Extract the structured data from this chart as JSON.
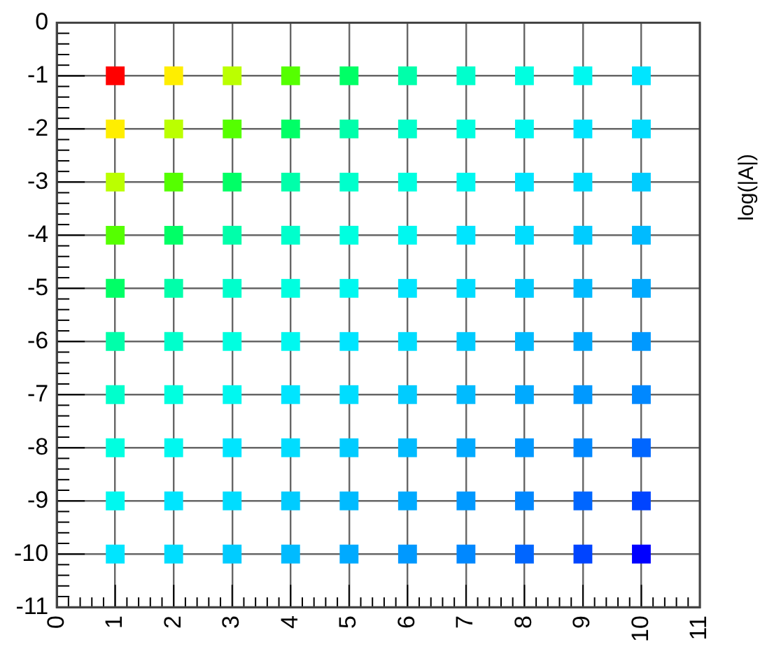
{
  "chart_data": {
    "type": "scatter",
    "clabel": "log(|A|)",
    "marker": "square",
    "grid": true,
    "x": [
      1,
      2,
      3,
      4,
      5,
      6,
      7,
      8,
      9,
      10,
      1,
      2,
      3,
      4,
      5,
      6,
      7,
      8,
      9,
      10,
      1,
      2,
      3,
      4,
      5,
      6,
      7,
      8,
      9,
      10,
      1,
      2,
      3,
      4,
      5,
      6,
      7,
      8,
      9,
      10,
      1,
      2,
      3,
      4,
      5,
      6,
      7,
      8,
      9,
      10,
      1,
      2,
      3,
      4,
      5,
      6,
      7,
      8,
      9,
      10,
      1,
      2,
      3,
      4,
      5,
      6,
      7,
      8,
      9,
      10,
      1,
      2,
      3,
      4,
      5,
      6,
      7,
      8,
      9,
      10,
      1,
      2,
      3,
      4,
      5,
      6,
      7,
      8,
      9,
      10,
      1,
      2,
      3,
      4,
      5,
      6,
      7,
      8,
      9,
      10
    ],
    "values": [
      -1,
      -1,
      -1,
      -1,
      -1,
      -1,
      -1,
      -1,
      -1,
      -1,
      -2,
      -2,
      -2,
      -2,
      -2,
      -2,
      -2,
      -2,
      -2,
      -2,
      -3,
      -3,
      -3,
      -3,
      -3,
      -3,
      -3,
      -3,
      -3,
      -3,
      -4,
      -4,
      -4,
      -4,
      -4,
      -4,
      -4,
      -4,
      -4,
      -4,
      -5,
      -5,
      -5,
      -5,
      -5,
      -5,
      -5,
      -5,
      -5,
      -5,
      -6,
      -6,
      -6,
      -6,
      -6,
      -6,
      -6,
      -6,
      -6,
      -6,
      -7,
      -7,
      -7,
      -7,
      -7,
      -7,
      -7,
      -7,
      -7,
      -7,
      -8,
      -8,
      -8,
      -8,
      -8,
      -8,
      -8,
      -8,
      -8,
      -8,
      -9,
      -9,
      -9,
      -9,
      -9,
      -9,
      -9,
      -9,
      -9,
      -9,
      -10,
      -10,
      -10,
      -10,
      -10,
      -10,
      -10,
      -10,
      -10,
      -10
    ],
    "colors": [
      "#ff0000",
      "#ffee00",
      "#bbff00",
      "#55ff00",
      "#00ff66",
      "#00ffaa",
      "#00ffcc",
      "#00ffe0",
      "#00f8f0",
      "#00e5ff",
      "#ffee00",
      "#bbff00",
      "#55ff00",
      "#00ff66",
      "#00ffaa",
      "#00ffcc",
      "#00ffe0",
      "#00f8f0",
      "#00e5ff",
      "#00ddff",
      "#bbff00",
      "#55ff00",
      "#00ff66",
      "#00ffaa",
      "#00ffcc",
      "#00ffe0",
      "#00f8f0",
      "#00e5ff",
      "#00ddff",
      "#00ccff",
      "#55ff00",
      "#00ff66",
      "#00ffaa",
      "#00ffcc",
      "#00ffe0",
      "#00f8f0",
      "#00e5ff",
      "#00ddff",
      "#00ccff",
      "#00bbff",
      "#00ff66",
      "#00ffaa",
      "#00ffcc",
      "#00ffe0",
      "#00f8f0",
      "#00e5ff",
      "#00ddff",
      "#00ccff",
      "#00bbff",
      "#00aaff",
      "#00ffaa",
      "#00ffcc",
      "#00ffe0",
      "#00f8f0",
      "#00e5ff",
      "#00ddff",
      "#00ccff",
      "#00bbff",
      "#00aaff",
      "#0099ff",
      "#00ffcc",
      "#00ffe0",
      "#00f8f0",
      "#00e5ff",
      "#00ddff",
      "#00ccff",
      "#00bbff",
      "#00aaff",
      "#0099ff",
      "#0088ff",
      "#00ffe0",
      "#00f8f0",
      "#00e5ff",
      "#00ddff",
      "#00ccff",
      "#00bbff",
      "#00aaff",
      "#0099ff",
      "#0088ff",
      "#0066ff",
      "#00f8f0",
      "#00e5ff",
      "#00ddff",
      "#00ccff",
      "#00bbff",
      "#00aaff",
      "#0099ff",
      "#0088ff",
      "#0066ff",
      "#0044ff",
      "#00e5ff",
      "#00ddff",
      "#00ccff",
      "#00bbff",
      "#00aaff",
      "#0099ff",
      "#0088ff",
      "#0066ff",
      "#0044ff",
      "#0000ff"
    ],
    "xlim": [
      0,
      11
    ],
    "ylim": [
      -11,
      0
    ],
    "xticks": [
      0,
      {
        "value": 0.2,
        "label": null
      },
      {
        "value": 0.4,
        "label": null
      },
      {
        "value": 0.6,
        "label": null
      },
      {
        "value": 0.8,
        "label": null
      },
      1,
      {
        "value": 1.2,
        "label": null
      },
      {
        "value": 1.4,
        "label": null
      },
      {
        "value": 1.6,
        "label": null
      },
      {
        "value": 1.8,
        "label": null
      },
      2,
      {
        "value": 2.2,
        "label": null
      },
      {
        "value": 2.4,
        "label": null
      },
      {
        "value": 2.6,
        "label": null
      },
      {
        "value": 2.8,
        "label": null
      },
      3,
      {
        "value": 3.2,
        "label": null
      },
      {
        "value": 3.4,
        "label": null
      },
      {
        "value": 3.6,
        "label": null
      },
      {
        "value": 3.8,
        "label": null
      },
      4,
      {
        "value": 4.2,
        "label": null
      },
      {
        "value": 4.4,
        "label": null
      },
      {
        "value": 4.6,
        "label": null
      },
      {
        "value": 4.8,
        "label": null
      },
      5,
      {
        "value": 5.2,
        "label": null
      },
      {
        "value": 5.4,
        "label": null
      },
      {
        "value": 5.6,
        "label": null
      },
      {
        "value": 5.8,
        "label": null
      },
      6,
      {
        "value": 6.2,
        "label": null
      },
      {
        "value": 6.4,
        "label": null
      },
      {
        "value": 6.6,
        "label": null
      },
      {
        "value": 6.8,
        "label": null
      },
      7,
      {
        "value": 7.2,
        "label": null
      },
      {
        "value": 7.4,
        "label": null
      },
      {
        "value": 7.6,
        "label": null
      },
      {
        "value": 7.8,
        "label": null
      },
      8,
      {
        "value": 8.2,
        "label": null
      },
      {
        "value": 8.4,
        "label": null
      },
      {
        "value": 8.6,
        "label": null
      },
      {
        "value": 8.8,
        "label": null
      },
      9,
      {
        "value": 9.2,
        "label": null
      },
      {
        "value": 9.4,
        "label": null
      },
      {
        "value": 9.6,
        "label": null
      },
      {
        "value": 9.8,
        "label": null
      },
      10,
      {
        "value": 10.2,
        "label": null
      },
      {
        "value": 10.4,
        "label": null
      },
      {
        "value": 10.6,
        "label": null
      },
      {
        "value": 10.8,
        "label": null
      },
      11
    ],
    "yticks": [
      -11,
      {
        "value": -10.8,
        "label": null
      },
      {
        "value": -10.6,
        "label": null
      },
      {
        "value": -10.4,
        "label": null
      },
      {
        "value": -10.2,
        "label": null
      },
      -10,
      {
        "value": -9.8,
        "label": null
      },
      {
        "value": -9.6,
        "label": null
      },
      {
        "value": -9.4,
        "label": null
      },
      {
        "value": -9.2,
        "label": null
      },
      -9,
      {
        "value": -8.8,
        "label": null
      },
      {
        "value": -8.6,
        "label": null
      },
      {
        "value": -8.4,
        "label": null
      },
      {
        "value": -8.2,
        "label": null
      },
      -8,
      {
        "value": -7.8,
        "label": null
      },
      {
        "value": -7.6,
        "label": null
      },
      {
        "value": -7.4,
        "label": null
      },
      {
        "value": -7.2,
        "label": null
      },
      -7,
      {
        "value": -6.8,
        "label": null
      },
      {
        "value": -6.6,
        "label": null
      },
      {
        "value": -6.4,
        "label": null
      },
      {
        "value": -6.2,
        "label": null
      },
      -6,
      {
        "value": -5.8,
        "label": null
      },
      {
        "value": -5.6,
        "label": null
      },
      {
        "value": -5.4,
        "label": null
      },
      {
        "value": -5.2,
        "label": null
      },
      -5,
      {
        "value": -4.8,
        "label": null
      },
      {
        "value": -4.6,
        "label": null
      },
      {
        "value": -4.4,
        "label": null
      },
      {
        "value": -4.2,
        "label": null
      },
      -4,
      {
        "value": -3.8,
        "label": null
      },
      {
        "value": -3.6,
        "label": null
      },
      {
        "value": -3.4,
        "label": null
      },
      {
        "value": -3.2,
        "label": null
      },
      -3,
      {
        "value": -2.8,
        "label": null
      },
      {
        "value": -2.6,
        "label": null
      },
      {
        "value": -2.4,
        "label": null
      },
      {
        "value": -2.2,
        "label": null
      },
      -2,
      {
        "value": -1.8,
        "label": null
      },
      {
        "value": -1.6,
        "label": null
      },
      {
        "value": -1.4,
        "label": null
      },
      {
        "value": -1.2,
        "label": null
      },
      -1,
      {
        "value": -0.8,
        "label": null
      },
      {
        "value": -0.6,
        "label": null
      },
      {
        "value": -0.4,
        "label": null
      },
      {
        "value": -0.2,
        "label": null
      },
      0
    ],
    "legend": false
  }
}
